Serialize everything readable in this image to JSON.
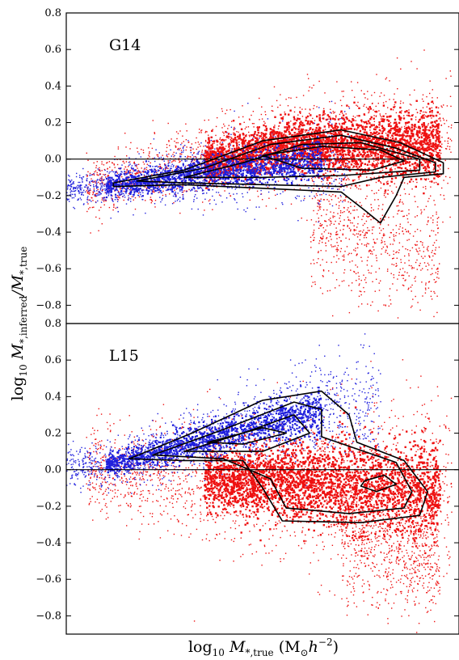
{
  "chart_data": [
    {
      "type": "scatter",
      "panel_label": "G14",
      "ylim": [
        -0.9,
        0.8
      ],
      "yticks": [
        "0.8",
        "0.6",
        "0.4",
        "0.2",
        "0.0",
        "−0.2",
        "−0.4",
        "−0.6",
        "−0.8"
      ],
      "reference_line_y": 0.0,
      "contours": true,
      "series": [
        {
          "color": "#1f1fdd"
        },
        {
          "color": "#ee1111"
        }
      ]
    },
    {
      "type": "scatter",
      "panel_label": "L15",
      "ylim": [
        -0.9,
        0.8
      ],
      "yticks": [
        "0.8",
        "0.6",
        "0.4",
        "0.2",
        "0.0",
        "−0.2",
        "−0.4",
        "−0.6",
        "−0.8"
      ],
      "reference_line_y": 0.0,
      "contours": true,
      "series": [
        {
          "color": "#1f1fdd"
        },
        {
          "color": "#ee1111"
        }
      ]
    }
  ],
  "axes": {
    "xlabel_main": "log",
    "xlabel_sub": "10",
    "xlabel_rest": " M",
    "xlabel_rest_sub": "*,true",
    "xlabel_units": " (M",
    "xlabel_units_sub": "⊙",
    "xlabel_units_tail": "h",
    "xlabel_units_sup": "−2",
    "xlabel_close": ")",
    "ylabel_main": "log",
    "ylabel_sub": "10",
    "ylabel_rest": " M",
    "ylabel_rest_sub": "*,inferred",
    "ylabel_div": "/M",
    "ylabel_div_sub": "*,true"
  }
}
